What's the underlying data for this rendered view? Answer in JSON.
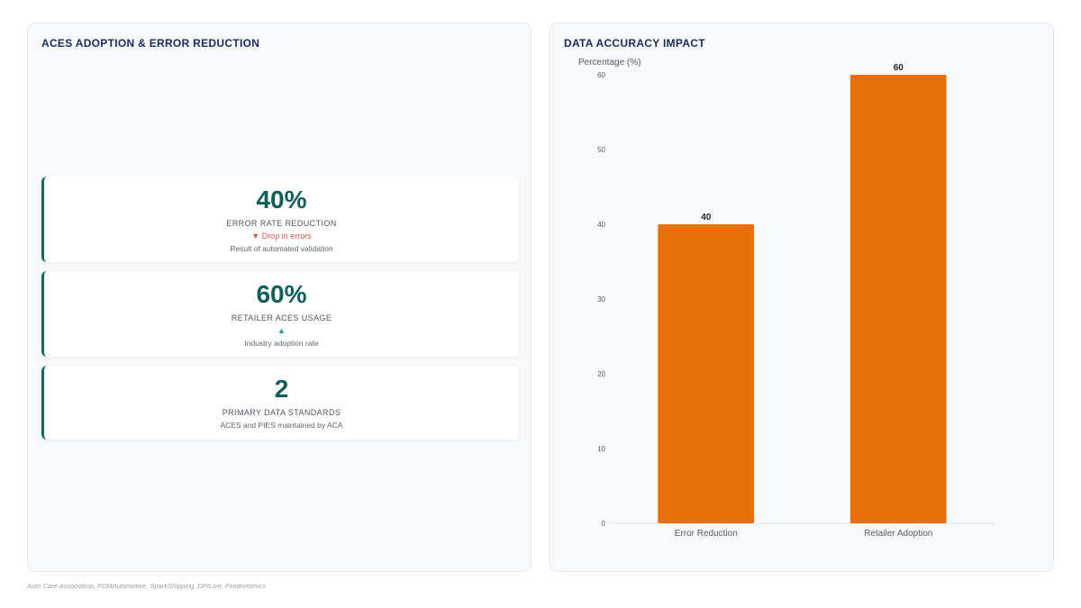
{
  "left_panel": {
    "title": "ACES ADOPTION & ERROR REDUCTION",
    "kpis": [
      {
        "value": "40%",
        "label": "ERROR RATE REDUCTION",
        "trend": "▼ Drop in errors",
        "trend_direction": "down",
        "sub": "Result of automated validation"
      },
      {
        "value": "60%",
        "label": "RETAILER ACES USAGE",
        "trend": "▲",
        "trend_direction": "up",
        "sub": "Industry adoption rate"
      },
      {
        "value": "2",
        "label": "PRIMARY DATA STANDARDS",
        "sub": "ACES and PIES maintained by ACA"
      }
    ]
  },
  "right_panel": {
    "title": "DATA ACCURACY IMPACT"
  },
  "chart_data": {
    "type": "bar",
    "title": "DATA ACCURACY IMPACT",
    "categories": [
      "Error Reduction",
      "Retailer Adoption"
    ],
    "values": [
      40,
      60
    ],
    "ylabel": "Percentage (%)",
    "xlabel": "",
    "ylim": [
      0,
      60
    ],
    "yticks": [
      0,
      10,
      20,
      30,
      40,
      50,
      60
    ],
    "data_labels": true,
    "grid": false,
    "legend": "none",
    "bar_color": "#e8700a"
  },
  "colors": {
    "accent_teal": "#0f5e5c",
    "bar_orange": "#e8700a",
    "trend_down": "#d9534f",
    "trend_up": "#1f9e8f"
  },
  "source": "Auto Care Association, PDMAutomotive, SparkShipping, DPILive, Feedonomics"
}
